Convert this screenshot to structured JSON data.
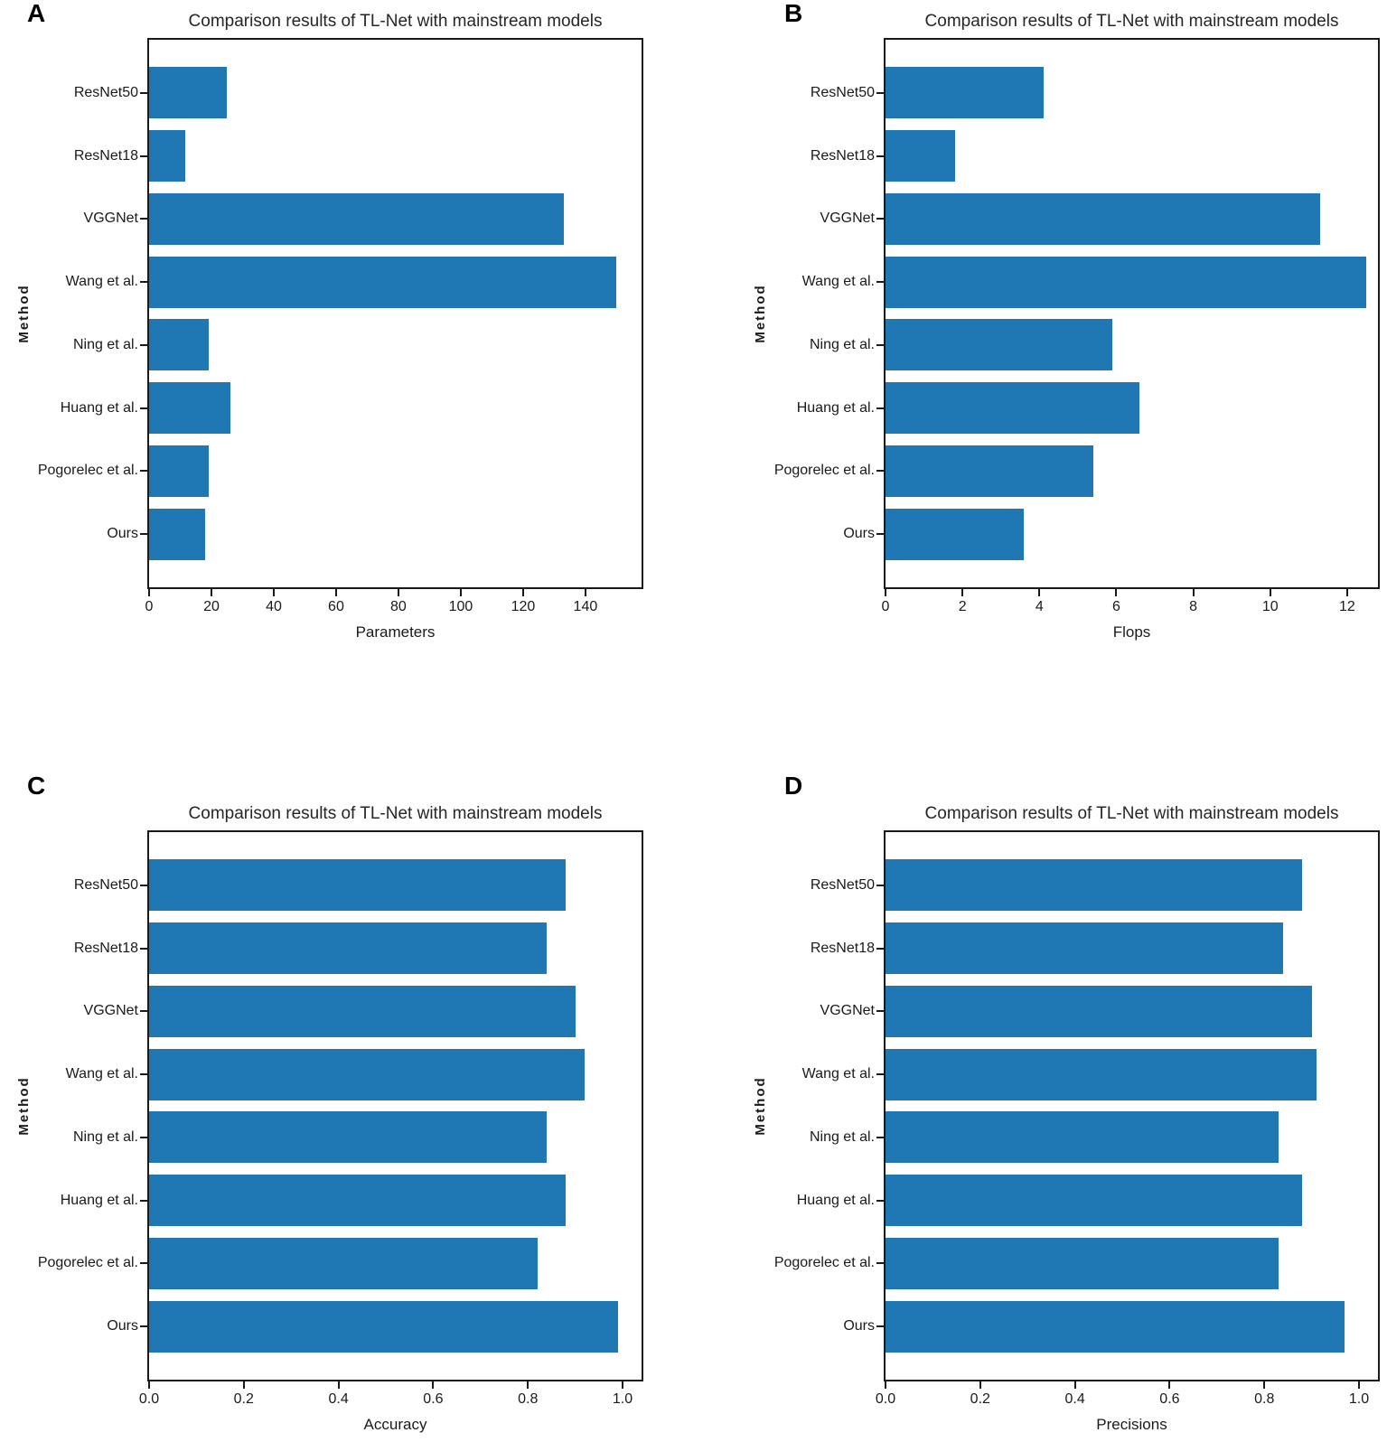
{
  "figure": {
    "background": "#ffffff",
    "bar_color": "#1f77b4",
    "axis_color": "#1a1a1a",
    "text_color": "#1a1a1a"
  },
  "chart_data": [
    {
      "panel": "A",
      "type": "bar",
      "orientation": "horizontal",
      "title": "Comparison results of TL-Net with mainstream models",
      "ylabel": "Method",
      "xlabel": "Parameters",
      "categories": [
        "ResNet50",
        "ResNet18",
        "VGGNet",
        "Wang et al.",
        "Ning et al.",
        "Huang et al.",
        "Pogorelec et al.",
        "Ours"
      ],
      "values": [
        25,
        11.7,
        133,
        150,
        19,
        26,
        19,
        18
      ],
      "xlim": [
        0,
        158
      ],
      "xticks": [
        0,
        20,
        40,
        60,
        80,
        100,
        120,
        140
      ],
      "xtick_labels": [
        "0",
        "20",
        "40",
        "60",
        "80",
        "100",
        "120",
        "140"
      ],
      "grid": false,
      "legend_position": "none"
    },
    {
      "panel": "B",
      "type": "bar",
      "orientation": "horizontal",
      "title": "Comparison results of TL-Net with mainstream models",
      "ylabel": "Method",
      "xlabel": "Flops",
      "categories": [
        "ResNet50",
        "ResNet18",
        "VGGNet",
        "Wang et al.",
        "Ning et al.",
        "Huang et al.",
        "Pogorelec et al.",
        "Ours"
      ],
      "values": [
        4.1,
        1.8,
        11.3,
        12.5,
        5.9,
        6.6,
        5.4,
        3.6
      ],
      "xlim": [
        0,
        12.8
      ],
      "xticks": [
        0,
        2,
        4,
        6,
        8,
        10,
        12
      ],
      "xtick_labels": [
        "0",
        "2",
        "4",
        "6",
        "8",
        "10",
        "12"
      ],
      "grid": false,
      "legend_position": "none"
    },
    {
      "panel": "C",
      "type": "bar",
      "orientation": "horizontal",
      "title": "Comparison results of TL-Net with mainstream models",
      "ylabel": "Method",
      "xlabel": "Accuracy",
      "categories": [
        "ResNet50",
        "ResNet18",
        "VGGNet",
        "Wang et al.",
        "Ning et al.",
        "Huang et al.",
        "Pogorelec et al.",
        "Ours"
      ],
      "values": [
        0.88,
        0.84,
        0.9,
        0.92,
        0.84,
        0.88,
        0.82,
        0.99
      ],
      "xlim": [
        0,
        1.04
      ],
      "xticks": [
        0,
        0.2,
        0.4,
        0.6,
        0.8,
        1.0
      ],
      "xtick_labels": [
        "0.0",
        "0.2",
        "0.4",
        "0.6",
        "0.8",
        "1.0"
      ],
      "grid": false,
      "legend_position": "none"
    },
    {
      "panel": "D",
      "type": "bar",
      "orientation": "horizontal",
      "title": "Comparison results of TL-Net with mainstream models",
      "ylabel": "Method",
      "xlabel": "Precisions",
      "categories": [
        "ResNet50",
        "ResNet18",
        "VGGNet",
        "Wang et al.",
        "Ning et al.",
        "Huang et al.",
        "Pogorelec et al.",
        "Ours"
      ],
      "values": [
        0.88,
        0.84,
        0.9,
        0.91,
        0.83,
        0.88,
        0.83,
        0.97
      ],
      "xlim": [
        0,
        1.04
      ],
      "xticks": [
        0,
        0.2,
        0.4,
        0.6,
        0.8,
        1.0
      ],
      "xtick_labels": [
        "0.0",
        "0.2",
        "0.4",
        "0.6",
        "0.8",
        "1.0"
      ],
      "grid": false,
      "legend_position": "none"
    }
  ]
}
